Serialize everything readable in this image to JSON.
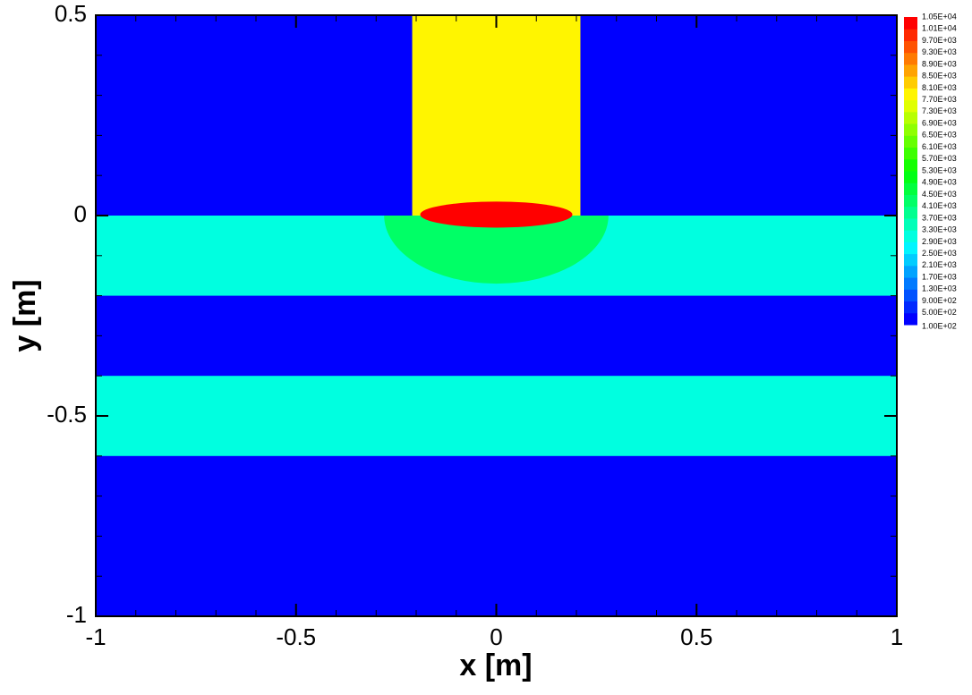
{
  "chart_data": {
    "type": "contour",
    "xlabel": "x [m]",
    "ylabel": "y [m]",
    "xlim": [
      -1,
      1
    ],
    "ylim": [
      -1,
      0.5
    ],
    "xticks": [
      -1,
      -0.5,
      0,
      0.5,
      1
    ],
    "yticks": [
      -1,
      -0.5,
      0,
      0.5
    ],
    "xminorticks": [
      -0.9,
      -0.8,
      -0.7,
      -0.6,
      -0.4,
      -0.3,
      -0.2,
      -0.1,
      0.1,
      0.2,
      0.3,
      0.4,
      0.6,
      0.7,
      0.8,
      0.9
    ],
    "yminorticks": [
      -0.9,
      -0.8,
      -0.7,
      -0.6,
      -0.4,
      -0.3,
      -0.2,
      -0.1,
      0.1,
      0.2,
      0.3,
      0.4
    ],
    "colormap": [
      "#0000ff",
      "#00ffff",
      "#00ff00",
      "#ffff00",
      "#ff0000"
    ],
    "levels": [
      {
        "value": 100,
        "label": "1.00E+02"
      },
      {
        "value": 500,
        "label": "5.00E+02"
      },
      {
        "value": 900,
        "label": "9.00E+02"
      },
      {
        "value": 1300,
        "label": "1.30E+03"
      },
      {
        "value": 1700,
        "label": "1.70E+03"
      },
      {
        "value": 2100,
        "label": "2.10E+03"
      },
      {
        "value": 2500,
        "label": "2.50E+03"
      },
      {
        "value": 2900,
        "label": "2.90E+03"
      },
      {
        "value": 3300,
        "label": "3.30E+03"
      },
      {
        "value": 3700,
        "label": "3.70E+03"
      },
      {
        "value": 4100,
        "label": "4.10E+03"
      },
      {
        "value": 4500,
        "label": "4.50E+03"
      },
      {
        "value": 4900,
        "label": "4.90E+03"
      },
      {
        "value": 5300,
        "label": "5.30E+03"
      },
      {
        "value": 5700,
        "label": "5.70E+03"
      },
      {
        "value": 6100,
        "label": "6.10E+03"
      },
      {
        "value": 6500,
        "label": "6.50E+03"
      },
      {
        "value": 6900,
        "label": "6.90E+03"
      },
      {
        "value": 7300,
        "label": "7.30E+03"
      },
      {
        "value": 7700,
        "label": "7.70E+03"
      },
      {
        "value": 8100,
        "label": "8.10E+03"
      },
      {
        "value": 8500,
        "label": "8.50E+03"
      },
      {
        "value": 8900,
        "label": "8.90E+03"
      },
      {
        "value": 9300,
        "label": "9.30E+03"
      },
      {
        "value": 9700,
        "label": "9.70E+03"
      },
      {
        "value": 10100,
        "label": "1.01E+04"
      },
      {
        "value": 10500,
        "label": "1.05E+04"
      }
    ],
    "regions": [
      {
        "shape": "rect",
        "x": [
          -1,
          1
        ],
        "y": [
          -1,
          0.5
        ],
        "value": 300
      },
      {
        "shape": "rect",
        "x": [
          -1,
          1
        ],
        "y": [
          -0.2,
          0
        ],
        "value": 2950
      },
      {
        "shape": "rect",
        "x": [
          -1,
          1
        ],
        "y": [
          -0.6,
          -0.4
        ],
        "value": 2950
      },
      {
        "shape": "half-ellipse",
        "x": [
          -0.28,
          0.28
        ],
        "y": [
          -0.17,
          0
        ],
        "value": 4300
      },
      {
        "shape": "rect",
        "x": [
          -0.21,
          0.21
        ],
        "y": [
          0,
          0.5
        ],
        "value": 7900
      },
      {
        "shape": "ellipse",
        "x": [
          -0.19,
          0.19
        ],
        "y": [
          -0.03,
          0.035
        ],
        "value": 10300
      }
    ]
  }
}
